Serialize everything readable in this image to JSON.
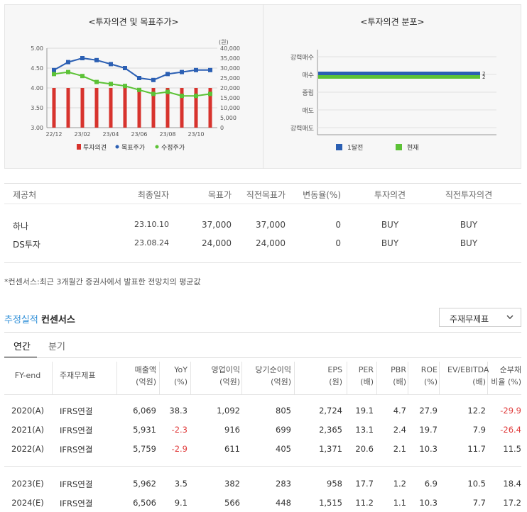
{
  "left_chart": {
    "title": "<투자의견 및 목표주가>",
    "unit_label": "(원)",
    "y_left_ticks": [
      "5.00",
      "4.50",
      "4.00",
      "3.50",
      "3.00"
    ],
    "y_right_ticks": [
      "40,000",
      "35,000",
      "30,000",
      "25,000",
      "20,000",
      "15,000",
      "10,000",
      "5,000",
      "0"
    ],
    "x_ticks": [
      "22/12",
      "23/02",
      "23/04",
      "23/06",
      "23/08",
      "23/10"
    ],
    "legend": [
      "투자의견",
      "목표주가",
      "수정주가"
    ],
    "colors": {
      "opinion": "#d7332d",
      "target": "#2b5fb3",
      "adjusted": "#5cc236"
    },
    "chart_data": {
      "type": "bar+line",
      "opinion_values": [
        4,
        4,
        4,
        4,
        4,
        4,
        4,
        4,
        4,
        4,
        4,
        4
      ],
      "target_price": [
        29000,
        33000,
        35000,
        34000,
        32000,
        30000,
        25000,
        24000,
        27000,
        28000,
        29000,
        29000
      ],
      "adjusted_price": [
        27000,
        28000,
        26000,
        23000,
        22000,
        21000,
        19000,
        17000,
        18000,
        16000,
        16000,
        17000
      ],
      "y_left_range": [
        3.0,
        5.0
      ],
      "y_right_range": [
        0,
        40000
      ]
    }
  },
  "right_chart": {
    "title": "<투자의견 분포>",
    "categories": [
      "강력매수",
      "매수",
      "중립",
      "매도",
      "강력매도"
    ],
    "legend": [
      "1달전",
      "현재"
    ],
    "colors": {
      "month_ago": "#2b5fb3",
      "current": "#5cc236"
    },
    "chart_data": {
      "type": "bar",
      "categories": [
        "강력매수",
        "매수",
        "중립",
        "매도",
        "강력매도"
      ],
      "series": [
        {
          "name": "1달전",
          "values": [
            0,
            2,
            0,
            0,
            0
          ]
        },
        {
          "name": "현재",
          "values": [
            0,
            2,
            0,
            0,
            0
          ]
        }
      ],
      "value_labels": [
        "2",
        "2"
      ]
    }
  },
  "broker_table": {
    "headers": [
      "제공처",
      "최종일자",
      "목표가",
      "직전목표가",
      "변동율(%)",
      "투자의견",
      "직전투자의견"
    ],
    "rows": [
      [
        "하나",
        "23.10.10",
        "37,000",
        "37,000",
        "0",
        "BUY",
        "BUY"
      ],
      [
        "DS투자",
        "23.08.24",
        "24,000",
        "24,000",
        "0",
        "BUY",
        "BUY"
      ]
    ]
  },
  "footnote": "*컨센서스:최근 3개월간 증권사에서 발표한 전망치의 평균값",
  "section": {
    "title_blue": "추정실적",
    "title_black": "컨센서스"
  },
  "dropdown": {
    "selected": "주재무제표"
  },
  "tabs": [
    "연간",
    "분기"
  ],
  "fin_table": {
    "headers": [
      [
        "FY-end",
        ""
      ],
      [
        "주재무제표",
        ""
      ],
      [
        "매출액",
        "(억원)"
      ],
      [
        "YoY",
        "(%)"
      ],
      [
        "영업이익",
        "(억원)"
      ],
      [
        "당기순이익",
        "(억원)"
      ],
      [
        "EPS",
        "(원)"
      ],
      [
        "PER",
        "(배)"
      ],
      [
        "PBR",
        "(배)"
      ],
      [
        "ROE",
        "(%)"
      ],
      [
        "EV/EBITDA",
        "(배)"
      ],
      [
        "순부채",
        "비율 (%)"
      ]
    ],
    "rows": [
      [
        "2020(A)",
        "IFRS연결",
        "6,069",
        "38.3",
        "1,092",
        "805",
        "2,724",
        "19.1",
        "4.7",
        "27.9",
        "12.2",
        "-29.9"
      ],
      [
        "2021(A)",
        "IFRS연결",
        "5,931",
        "-2.3",
        "916",
        "699",
        "2,365",
        "13.1",
        "2.4",
        "19.7",
        "7.9",
        "-26.4"
      ],
      [
        "2022(A)",
        "IFRS연결",
        "5,759",
        "-2.9",
        "611",
        "405",
        "1,371",
        "20.6",
        "2.1",
        "10.3",
        "11.7",
        "11.5"
      ],
      [
        "2023(E)",
        "IFRS연결",
        "5,962",
        "3.5",
        "382",
        "283",
        "958",
        "17.7",
        "1.2",
        "6.9",
        "10.5",
        "18.4"
      ],
      [
        "2024(E)",
        "IFRS연결",
        "6,506",
        "9.1",
        "566",
        "448",
        "1,515",
        "11.2",
        "1.1",
        "10.3",
        "7.7",
        "17.2"
      ]
    ]
  }
}
